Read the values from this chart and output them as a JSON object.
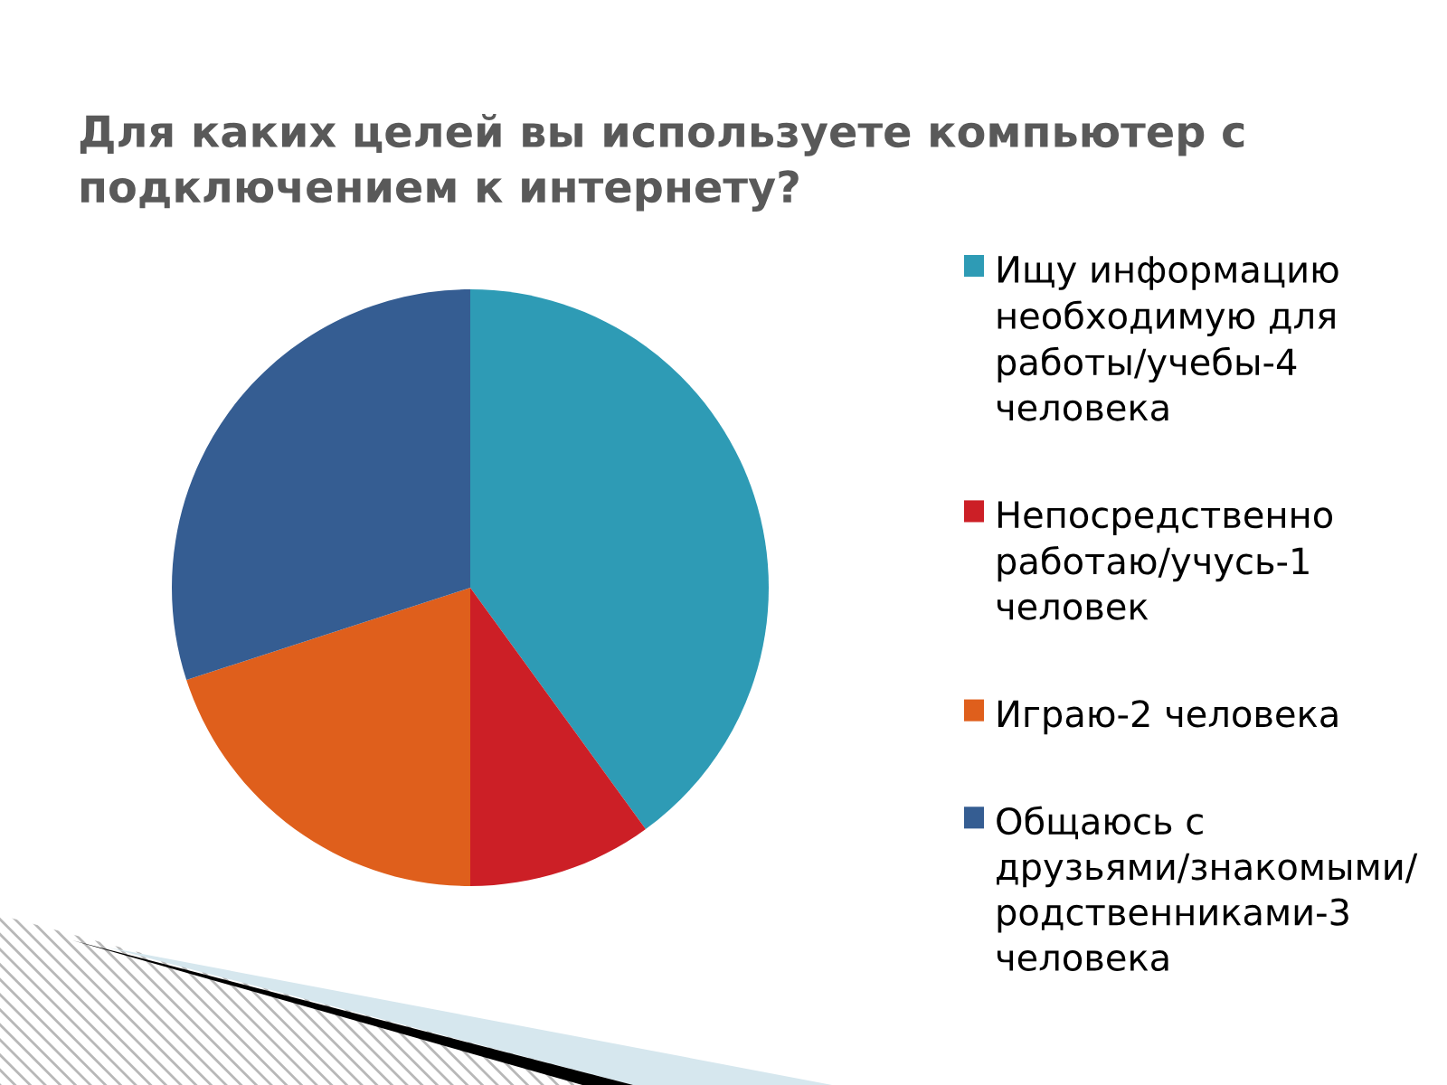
{
  "chart_data": {
    "type": "pie",
    "title": "Для каких целей вы используете компьютер с подключением к интернету?",
    "categories": [
      "Ищу информацию необходимую для работы/учебы-4 человека",
      "Непосредственно работаю/учусь-1 человек",
      "Играю-2 человека",
      "Общаюсь с друзьями/знакомыми/родственниками-3 человека"
    ],
    "values": [
      40,
      10,
      20,
      30
    ],
    "colors": [
      "#2e9bb5",
      "#cc1f26",
      "#df5f1c",
      "#355d92"
    ],
    "legend": "right"
  }
}
